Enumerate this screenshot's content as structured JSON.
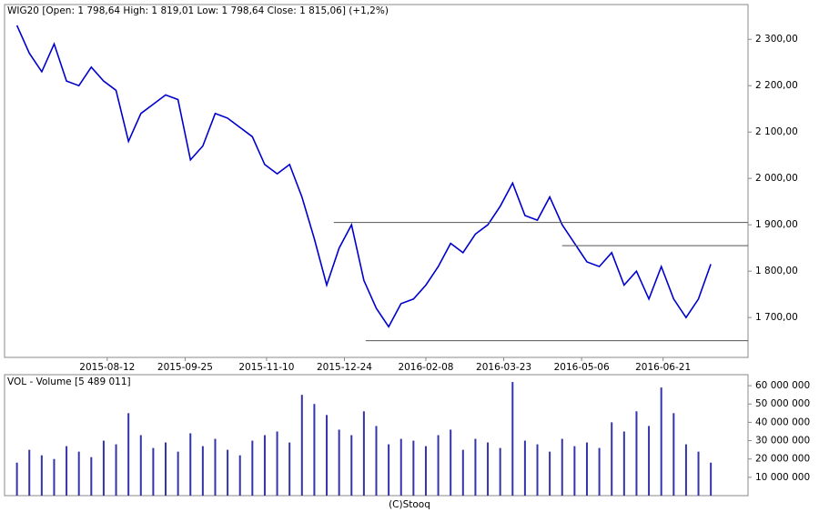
{
  "chart_data": [
    {
      "type": "line",
      "title": "WIG20 [Open: 1 798,64  High: 1 819,01  Low: 1 798,64  Close: 1 815,06] (+1,2%)",
      "color": "#0000cc",
      "x": [
        "2015-06-22",
        "2015-06-29",
        "2015-07-06",
        "2015-07-13",
        "2015-07-20",
        "2015-07-27",
        "2015-08-03",
        "2015-08-10",
        "2015-08-17",
        "2015-08-24",
        "2015-08-31",
        "2015-09-07",
        "2015-09-14",
        "2015-09-21",
        "2015-09-28",
        "2015-10-05",
        "2015-10-12",
        "2015-10-19",
        "2015-10-26",
        "2015-11-02",
        "2015-11-09",
        "2015-11-16",
        "2015-11-23",
        "2015-11-30",
        "2015-12-07",
        "2015-12-14",
        "2015-12-21",
        "2015-12-28",
        "2016-01-04",
        "2016-01-11",
        "2016-01-18",
        "2016-01-25",
        "2016-02-01",
        "2016-02-08",
        "2016-02-15",
        "2016-02-22",
        "2016-02-29",
        "2016-03-07",
        "2016-03-14",
        "2016-03-21",
        "2016-03-28",
        "2016-04-04",
        "2016-04-11",
        "2016-04-18",
        "2016-04-25",
        "2016-05-02",
        "2016-05-09",
        "2016-05-16",
        "2016-05-23",
        "2016-05-30",
        "2016-06-06",
        "2016-06-13",
        "2016-06-20",
        "2016-06-27",
        "2016-07-04",
        "2016-07-11",
        "2016-07-18"
      ],
      "values": [
        2330,
        2270,
        2230,
        2290,
        2210,
        2200,
        2240,
        2210,
        2190,
        2080,
        2140,
        2160,
        2180,
        2170,
        2040,
        2070,
        2140,
        2130,
        2110,
        2090,
        2030,
        2010,
        2030,
        1960,
        1870,
        1770,
        1850,
        1900,
        1780,
        1720,
        1680,
        1730,
        1740,
        1770,
        1810,
        1860,
        1840,
        1880,
        1900,
        1940,
        1990,
        1920,
        1910,
        1960,
        1900,
        1860,
        1820,
        1810,
        1840,
        1770,
        1800,
        1740,
        1810,
        1740,
        1700,
        1740,
        1815
      ],
      "xlim": [
        "2015-06-15",
        "2016-08-08"
      ],
      "xticks": [
        "2015-08-12",
        "2015-09-25",
        "2015-11-10",
        "2015-12-24",
        "2016-02-08",
        "2016-03-23",
        "2016-05-06",
        "2016-06-21"
      ],
      "ylim": [
        1614,
        2375
      ],
      "yticks": [
        {
          "value": 1700,
          "label": "1 700,00"
        },
        {
          "value": 1800,
          "label": "1 800,00"
        },
        {
          "value": 1900,
          "label": "1 900,00"
        },
        {
          "value": 2000,
          "label": "2 000,00"
        },
        {
          "value": 2100,
          "label": "2 100,00"
        },
        {
          "value": 2200,
          "label": "2 200,00"
        },
        {
          "value": 2300,
          "label": "2 300,00"
        }
      ],
      "reference_lines": [
        {
          "value": 1905,
          "start": "2015-12-18"
        },
        {
          "value": 1855,
          "start": "2016-04-25"
        },
        {
          "value": 1650,
          "start": "2016-01-05"
        }
      ]
    },
    {
      "type": "bar",
      "title": "VOL - Volume [5 489 011]",
      "color": "#3333aa",
      "x": [
        "2015-06-22",
        "2015-06-29",
        "2015-07-06",
        "2015-07-13",
        "2015-07-20",
        "2015-07-27",
        "2015-08-03",
        "2015-08-10",
        "2015-08-17",
        "2015-08-24",
        "2015-08-31",
        "2015-09-07",
        "2015-09-14",
        "2015-09-21",
        "2015-09-28",
        "2015-10-05",
        "2015-10-12",
        "2015-10-19",
        "2015-10-26",
        "2015-11-02",
        "2015-11-09",
        "2015-11-16",
        "2015-11-23",
        "2015-11-30",
        "2015-12-07",
        "2015-12-14",
        "2015-12-21",
        "2015-12-28",
        "2016-01-04",
        "2016-01-11",
        "2016-01-18",
        "2016-01-25",
        "2016-02-01",
        "2016-02-08",
        "2016-02-15",
        "2016-02-22",
        "2016-02-29",
        "2016-03-07",
        "2016-03-14",
        "2016-03-21",
        "2016-03-28",
        "2016-04-04",
        "2016-04-11",
        "2016-04-18",
        "2016-04-25",
        "2016-05-02",
        "2016-05-09",
        "2016-05-16",
        "2016-05-23",
        "2016-05-30",
        "2016-06-06",
        "2016-06-13",
        "2016-06-20",
        "2016-06-27",
        "2016-07-04",
        "2016-07-11",
        "2016-07-18"
      ],
      "values": [
        18000000,
        25000000,
        22000000,
        20000000,
        27000000,
        24000000,
        21000000,
        30000000,
        28000000,
        45000000,
        33000000,
        26000000,
        29000000,
        24000000,
        34000000,
        27000000,
        31000000,
        25000000,
        22000000,
        30000000,
        33000000,
        35000000,
        29000000,
        55000000,
        50000000,
        44000000,
        36000000,
        33000000,
        46000000,
        38000000,
        28000000,
        31000000,
        30000000,
        27000000,
        33000000,
        36000000,
        25000000,
        31000000,
        29000000,
        26000000,
        62000000,
        30000000,
        28000000,
        24000000,
        31000000,
        27000000,
        29000000,
        26000000,
        40000000,
        35000000,
        46000000,
        38000000,
        59000000,
        45000000,
        28000000,
        24000000,
        18000000
      ],
      "xlim": [
        "2015-06-15",
        "2016-08-08"
      ],
      "ylim": [
        0,
        66000000
      ],
      "yticks": [
        {
          "value": 10000000,
          "label": "10 000 000"
        },
        {
          "value": 20000000,
          "label": "20 000 000"
        },
        {
          "value": 30000000,
          "label": "30 000 000"
        },
        {
          "value": 40000000,
          "label": "40 000 000"
        },
        {
          "value": 50000000,
          "label": "50 000 000"
        },
        {
          "value": 60000000,
          "label": "60 000 000"
        }
      ],
      "footer": "(C)Stooq"
    }
  ]
}
